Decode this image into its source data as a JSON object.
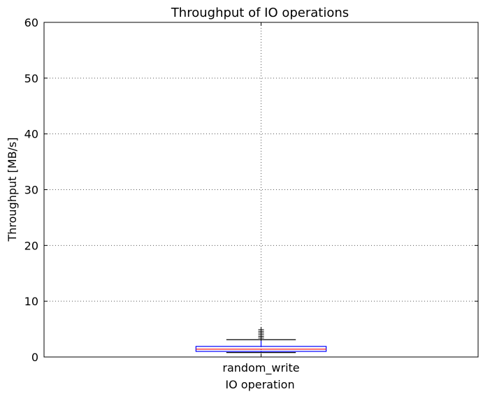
{
  "chart_data": {
    "type": "box",
    "title": "Throughput of IO operations",
    "xlabel": "IO operation",
    "ylabel": "Throughput [MB/s]",
    "ylim": [
      0,
      60
    ],
    "yticks": [
      0,
      10,
      20,
      30,
      40,
      50,
      60
    ],
    "grid": true,
    "categories": [
      "random_write"
    ],
    "boxes": [
      {
        "category": "random_write",
        "whisker_low": 0.8,
        "q1": 1.0,
        "median": 1.4,
        "q3": 1.9,
        "whisker_high": 3.1,
        "outliers": [
          3.4,
          3.7,
          4.0,
          4.3,
          4.6,
          4.9
        ]
      }
    ],
    "colors": {
      "box": "#0000ff",
      "median": "#ff0000",
      "cap": "#000000",
      "outlier": "#000000",
      "grid": "#555555",
      "axes": "#000000"
    }
  }
}
